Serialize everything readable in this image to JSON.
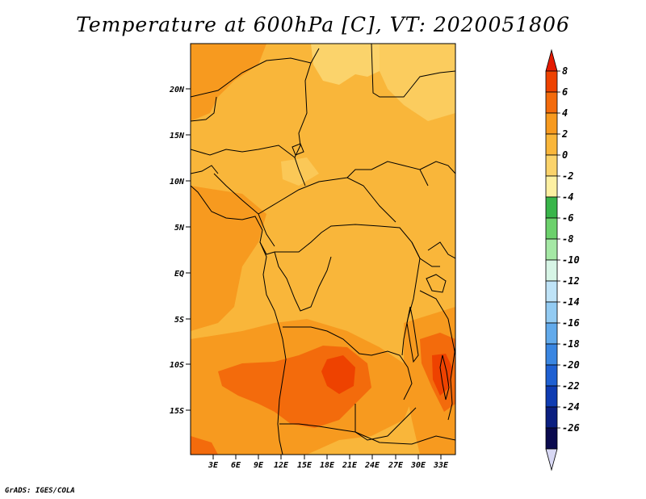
{
  "map": {
    "title": "Temperature at 600hPa [C], VT: 2020051806",
    "credit": "GrADS: IGES/COLA",
    "lat_labels": [
      "20N",
      "15N",
      "10N",
      "5N",
      "EQ",
      "5S",
      "10S",
      "15S"
    ],
    "lon_labels": [
      "3E",
      "6E",
      "9E",
      "12E",
      "15E",
      "18E",
      "21E",
      "24E",
      "27E",
      "30E",
      "33E"
    ],
    "colorbar": {
      "labels": [
        "8",
        "6",
        "4",
        "2",
        "0",
        "-2",
        "-4",
        "-6",
        "-8",
        "-10",
        "-12",
        "-14",
        "-16",
        "-18",
        "-20",
        "-22",
        "-24",
        "-26"
      ],
      "colors": [
        "#e41a00",
        "#ee4200",
        "#f36b0c",
        "#f79a1f",
        "#f9b63a",
        "#fbd36b",
        "#fdf0a2",
        "#39b54a",
        "#6cd16c",
        "#a5e8a5",
        "#d7f5e6",
        "#bfe3f7",
        "#93cbf2",
        "#62aaeb",
        "#3a86e1",
        "#1f60d2",
        "#0f3cb2",
        "#0b1f80",
        "#0a0a4e",
        "#d8d8f4"
      ]
    },
    "colors": {
      "base": "#f9b63a",
      "warm_light": "#fbd36b",
      "warm_mid": "#f79a1f",
      "warm_high": "#f36b0c",
      "warm_peak": "#ee4200"
    }
  }
}
